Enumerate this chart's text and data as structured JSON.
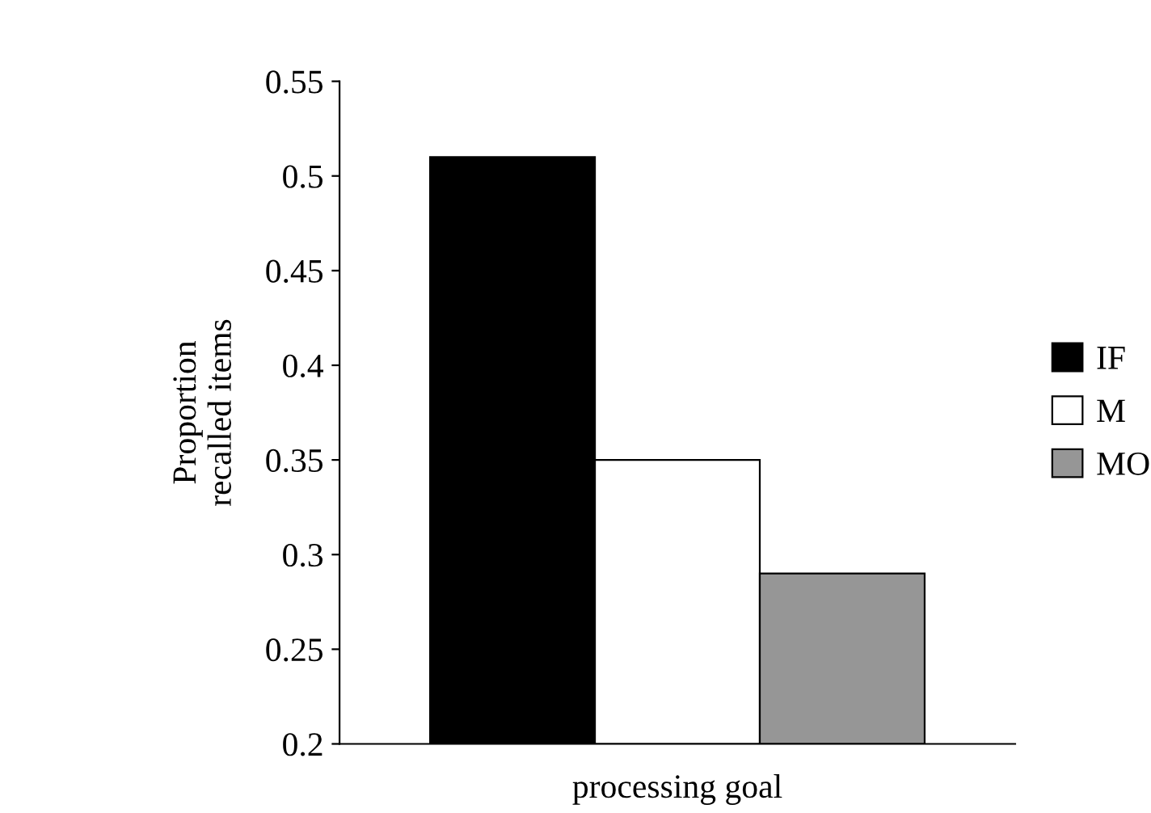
{
  "chart_data": {
    "type": "bar",
    "xlabel": "processing goal",
    "ylabel": "Proportion\nrecalled items",
    "categories": [
      null
    ],
    "series": [
      {
        "name": "IF",
        "color": "#000000",
        "values": [
          0.51
        ]
      },
      {
        "name": "M",
        "color": "#ffffff",
        "values": [
          0.35
        ]
      },
      {
        "name": "MO",
        "color": "#969696",
        "values": [
          0.29
        ]
      }
    ],
    "ylim": [
      0.2,
      0.55
    ],
    "yticks": [
      0.2,
      0.25,
      0.3,
      0.35,
      0.4,
      0.45,
      0.5,
      0.55
    ],
    "grid": false,
    "legend": "right",
    "tick_labels": "y"
  }
}
